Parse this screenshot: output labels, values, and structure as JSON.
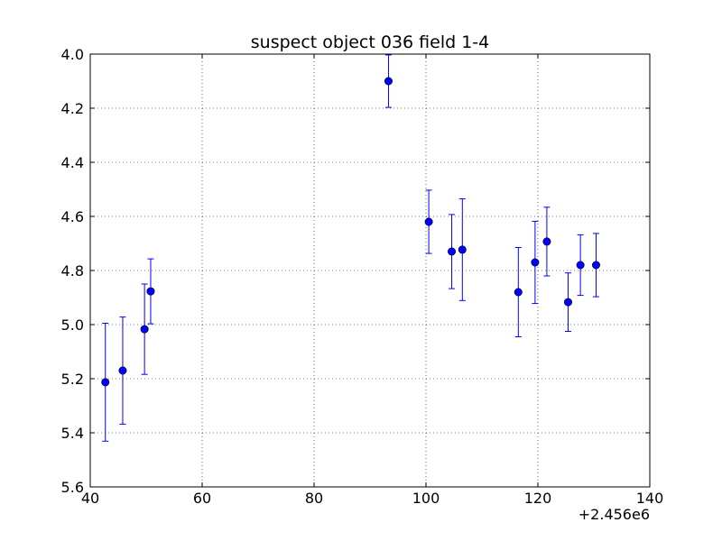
{
  "chart_data": {
    "type": "scatter",
    "title": "suspect object 036 field 1-4",
    "xlabel": "",
    "ylabel": "",
    "x_offset_label": "+2.456e6",
    "xlim": [
      40,
      140
    ],
    "ylim": [
      5.6,
      4.0
    ],
    "y_inverted": true,
    "grid": true,
    "x_ticks": [
      40,
      60,
      80,
      100,
      120,
      140
    ],
    "x_tick_labels": [
      "40",
      "60",
      "80",
      "100",
      "120",
      "140"
    ],
    "y_ticks": [
      4.0,
      4.2,
      4.4,
      4.6,
      4.8,
      5.0,
      5.2,
      5.4,
      5.6
    ],
    "y_tick_labels": [
      "4.0",
      "4.2",
      "4.4",
      "4.6",
      "4.8",
      "5.0",
      "5.2",
      "5.4",
      "5.6"
    ],
    "marker_color": "#0000ff",
    "points": [
      {
        "x": 42.7,
        "y": 5.213,
        "err": 0.218
      },
      {
        "x": 45.8,
        "y": 5.17,
        "err": 0.198
      },
      {
        "x": 49.7,
        "y": 5.017,
        "err": 0.167
      },
      {
        "x": 50.8,
        "y": 4.877,
        "err": 0.12
      },
      {
        "x": 93.3,
        "y": 4.1,
        "err": 0.097
      },
      {
        "x": 100.5,
        "y": 4.62,
        "err": 0.117
      },
      {
        "x": 104.6,
        "y": 4.73,
        "err": 0.137
      },
      {
        "x": 106.5,
        "y": 4.723,
        "err": 0.188
      },
      {
        "x": 116.5,
        "y": 4.88,
        "err": 0.165
      },
      {
        "x": 119.5,
        "y": 4.77,
        "err": 0.152
      },
      {
        "x": 121.6,
        "y": 4.693,
        "err": 0.127
      },
      {
        "x": 125.4,
        "y": 4.917,
        "err": 0.108
      },
      {
        "x": 127.6,
        "y": 4.78,
        "err": 0.112
      },
      {
        "x": 130.4,
        "y": 4.78,
        "err": 0.117
      }
    ]
  }
}
